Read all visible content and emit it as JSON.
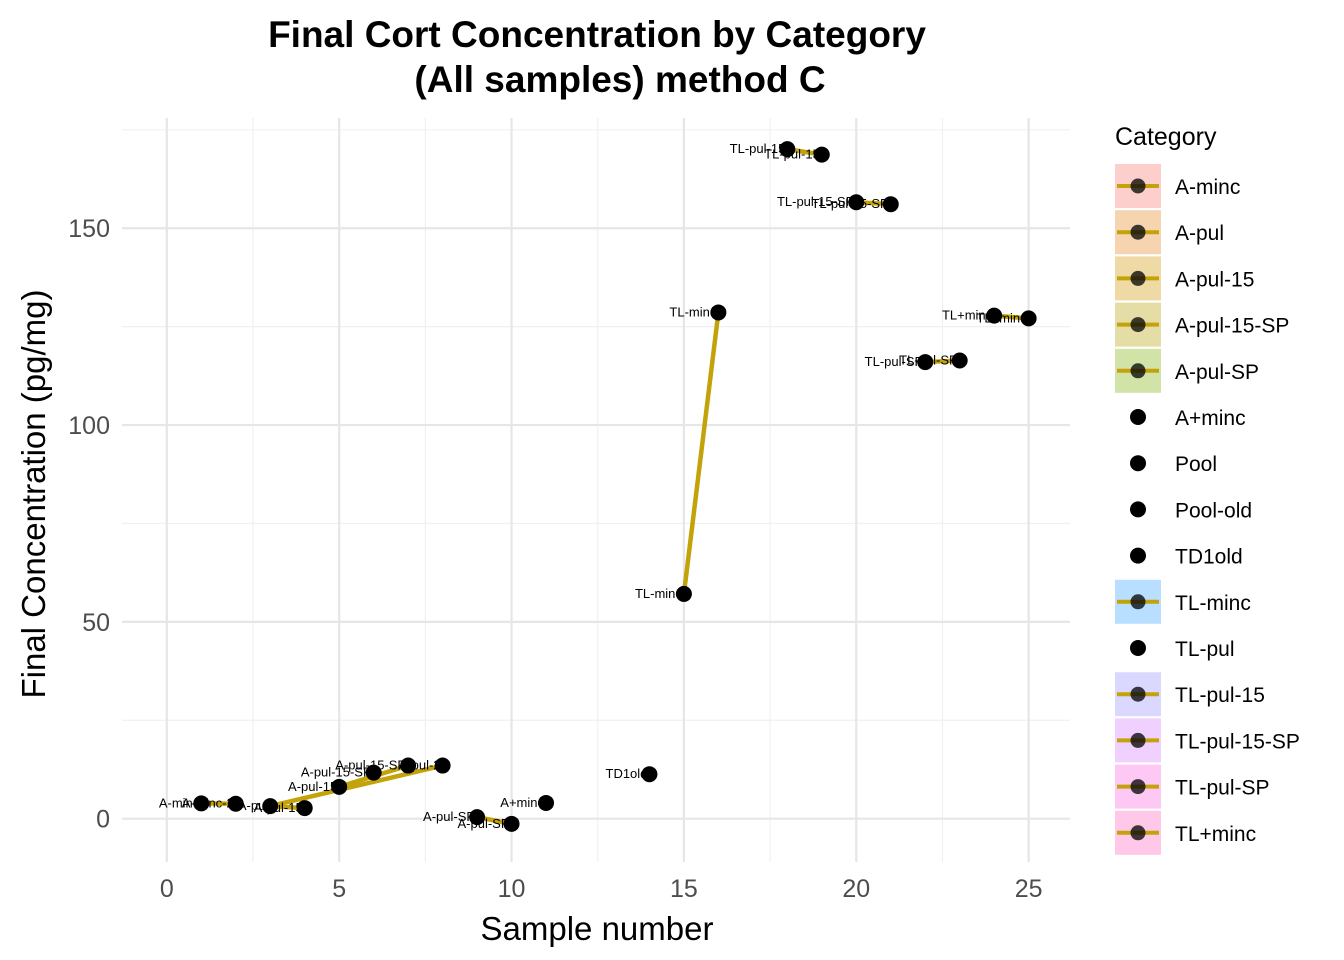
{
  "chart_data": {
    "type": "scatter",
    "title": "Final Cort Concentration by Category",
    "subtitle": "(All samples) method C",
    "xlabel": "Sample number",
    "ylabel": "Final Concentration (pg/mg)",
    "xlim": [
      -1.3,
      26.2
    ],
    "ylim": [
      -11,
      178
    ],
    "x_ticks": [
      0,
      5,
      10,
      15,
      20,
      25
    ],
    "y_ticks": [
      0,
      50,
      100,
      150
    ],
    "grid": true,
    "legend_position": "right",
    "legend_title": "Category",
    "line_color": "#c4a20a",
    "point_color": "#000000",
    "categories": [
      {
        "name": "A-minc",
        "paired": true,
        "fill": "#f8766d"
      },
      {
        "name": "A-pul",
        "paired": true,
        "fill": "#e7851e"
      },
      {
        "name": "A-pul-15",
        "paired": true,
        "fill": "#d09400"
      },
      {
        "name": "A-pul-15-SP",
        "paired": true,
        "fill": "#b2a100"
      },
      {
        "name": "A-pul-SP",
        "paired": true,
        "fill": "#7cae00"
      },
      {
        "name": "A+minc",
        "paired": false,
        "fill": ""
      },
      {
        "name": "Pool",
        "paired": false,
        "fill": ""
      },
      {
        "name": "Pool-old",
        "paired": false,
        "fill": ""
      },
      {
        "name": "TD1old",
        "paired": false,
        "fill": ""
      },
      {
        "name": "TL-minc",
        "paired": true,
        "fill": "#35a2ff"
      },
      {
        "name": "TL-pul",
        "paired": false,
        "fill": ""
      },
      {
        "name": "TL-pul-15",
        "paired": true,
        "fill": "#9590ff"
      },
      {
        "name": "TL-pul-15-SP",
        "paired": true,
        "fill": "#d277ff"
      },
      {
        "name": "TL-pul-SP",
        "paired": true,
        "fill": "#f863df"
      },
      {
        "name": "TL+minc",
        "paired": true,
        "fill": "#ff62bc"
      }
    ],
    "points": [
      {
        "x": 1,
        "y": 3.9,
        "label": "A-minc"
      },
      {
        "x": 2,
        "y": 3.8,
        "label": "A-minc-2"
      },
      {
        "x": 3,
        "y": 3.2,
        "label": "A-pul"
      },
      {
        "x": 4,
        "y": 2.7,
        "label": "A-pul-15"
      },
      {
        "x": 5,
        "y": 8.1,
        "label": "A-pul-15"
      },
      {
        "x": 6,
        "y": 11.7,
        "label": "A-pul-15-SP"
      },
      {
        "x": 7,
        "y": 13.5,
        "label": "A-pul-15-SP"
      },
      {
        "x": 8,
        "y": 13.5,
        "label": "A-pul-2"
      },
      {
        "x": 9,
        "y": 0.4,
        "label": "A-pul-SP"
      },
      {
        "x": 10,
        "y": -1.3,
        "label": "A-pul-SP"
      },
      {
        "x": 11,
        "y": 4.0,
        "label": "A+minc"
      },
      {
        "x": 14,
        "y": 11.3,
        "label": "TD1old"
      },
      {
        "x": 15,
        "y": 57.1,
        "label": "TL-minc"
      },
      {
        "x": 16,
        "y": 128.6,
        "label": "TL-minc"
      },
      {
        "x": 18,
        "y": 170.1,
        "label": "TL-pul-15"
      },
      {
        "x": 19,
        "y": 168.7,
        "label": "TL-pul-15"
      },
      {
        "x": 20,
        "y": 156.6,
        "label": "TL-pul-15-SP"
      },
      {
        "x": 21,
        "y": 156.1,
        "label": "TL-pul-15-SP"
      },
      {
        "x": 22,
        "y": 116.0,
        "label": "TL-pul-SP"
      },
      {
        "x": 23,
        "y": 116.4,
        "label": "TL-pul-SP"
      },
      {
        "x": 24,
        "y": 127.8,
        "label": "TL+minc"
      },
      {
        "x": 25,
        "y": 127.1,
        "label": "TL+minc"
      }
    ],
    "segments": [
      [
        1,
        2
      ],
      [
        3,
        4
      ],
      [
        3,
        8
      ],
      [
        5,
        7
      ],
      [
        9,
        10
      ],
      [
        15,
        16
      ],
      [
        18,
        19
      ],
      [
        20,
        21
      ],
      [
        22,
        23
      ],
      [
        24,
        25
      ]
    ]
  }
}
